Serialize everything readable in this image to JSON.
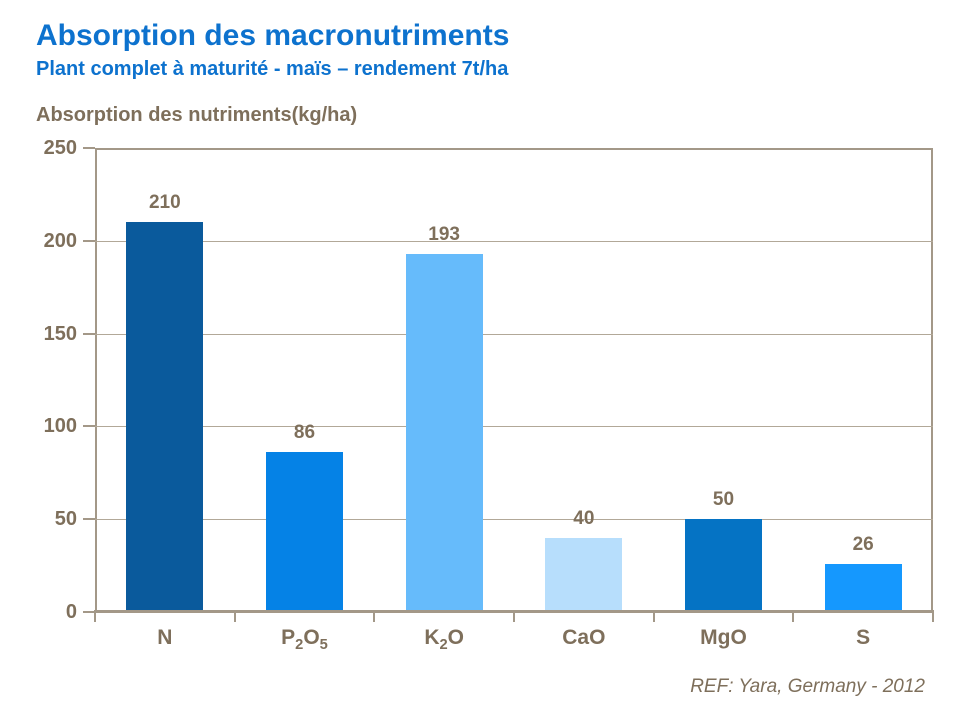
{
  "header": {
    "title": "Absorption des macronutriments",
    "subtitle": "Plant complet à maturité - maïs – rendement 7t/ha"
  },
  "chart": {
    "heading": "Absorption des nutriments(kg/ha)"
  },
  "footer": {
    "ref": "REF: Yara, Germany - 2012"
  },
  "chart_data": {
    "type": "bar",
    "title": "Absorption des macronutriments",
    "subtitle": "Plant complet à maturité - maïs – rendement 7t/ha",
    "axis_title": "Absorption des nutriments(kg/ha)",
    "categories": [
      "N",
      "P_2O_5",
      "K_2O",
      "CaO",
      "MgO",
      "S"
    ],
    "values": [
      210,
      86,
      193,
      40,
      50,
      26
    ],
    "bar_colors": [
      "#0a5a9c",
      "#0582e6",
      "#66bbfb",
      "#b7defc",
      "#0573c4",
      "#1598fe"
    ],
    "ylim": [
      0,
      250
    ],
    "yticks": [
      0,
      50,
      100,
      150,
      200,
      250
    ],
    "grid": true,
    "legend": false,
    "value_labels": true,
    "source": "REF: Yara, Germany - 2012"
  },
  "colors": {
    "title_blue": "#0d72ce",
    "axis_text": "#7e6f5b",
    "axis_line": "#a39888",
    "gridline": "#b2a898"
  }
}
